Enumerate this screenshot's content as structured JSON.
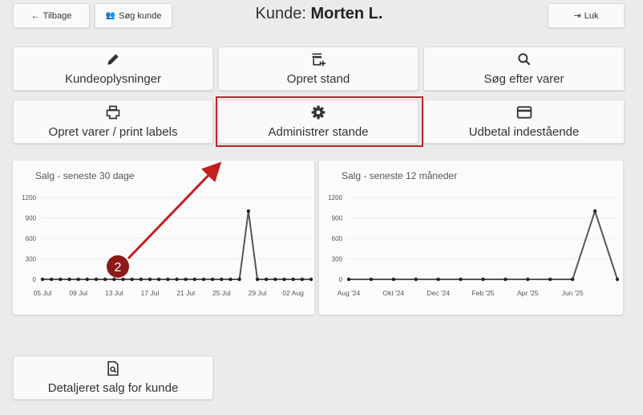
{
  "header": {
    "back_label": "Tilbage",
    "search_customer_label": "Søg kunde",
    "title_prefix": "Kunde:",
    "customer_name": "Morten L.",
    "close_label": "Luk"
  },
  "actions": [
    {
      "label": "Kundeoplysninger",
      "icon": "pencil-icon"
    },
    {
      "label": "Opret stand",
      "icon": "add-store-icon"
    },
    {
      "label": "Søg efter varer",
      "icon": "search-icon"
    },
    {
      "label": "Opret varer / print labels",
      "icon": "printer-icon"
    },
    {
      "label": "Administrer stande",
      "icon": "gear-icon"
    },
    {
      "label": "Udbetal indestående",
      "icon": "credit-card-icon"
    }
  ],
  "bottom_action": {
    "label": "Detaljeret salg for kunde",
    "icon": "document-search-icon"
  },
  "annotation": {
    "badge": "2",
    "color": "#b52a2a"
  },
  "chart_data": [
    {
      "type": "line",
      "title": "Salg - seneste 30 dage",
      "ylim": [
        0,
        1200
      ],
      "yticks": [
        "0",
        "300",
        "600",
        "900",
        "1200"
      ],
      "xticks": [
        "05 Jul",
        "09 Jul",
        "13 Jul",
        "17 Jul",
        "21 Jul",
        "25 Jul",
        "29 Jul",
        "02 Aug"
      ],
      "x": [
        "05 Jul",
        "06 Jul",
        "07 Jul",
        "08 Jul",
        "09 Jul",
        "10 Jul",
        "11 Jul",
        "12 Jul",
        "13 Jul",
        "14 Jul",
        "15 Jul",
        "16 Jul",
        "17 Jul",
        "18 Jul",
        "19 Jul",
        "20 Jul",
        "21 Jul",
        "22 Jul",
        "23 Jul",
        "24 Jul",
        "25 Jul",
        "26 Jul",
        "27 Jul",
        "28 Jul",
        "29 Jul",
        "30 Jul",
        "31 Jul",
        "01 Aug",
        "02 Aug",
        "03 Aug",
        "04 Aug"
      ],
      "values": [
        0,
        0,
        0,
        0,
        0,
        0,
        0,
        0,
        0,
        0,
        0,
        0,
        0,
        0,
        0,
        0,
        0,
        0,
        0,
        0,
        0,
        0,
        0,
        1000,
        0,
        0,
        0,
        0,
        0,
        0,
        0
      ],
      "grid": true,
      "line_color": "#555555"
    },
    {
      "type": "line",
      "title": "Salg - seneste 12 måneder",
      "ylim": [
        0,
        1200
      ],
      "yticks": [
        "0",
        "300",
        "600",
        "900",
        "1200"
      ],
      "xticks": [
        "Aug '24",
        "Okt '24",
        "Dec '24",
        "Feb '25",
        "Apr '25",
        "Jun '25"
      ],
      "x": [
        "Aug '24",
        "Sep '24",
        "Okt '24",
        "Nov '24",
        "Dec '24",
        "Jan '25",
        "Feb '25",
        "Mar '25",
        "Apr '25",
        "Maj '25",
        "Jun '25",
        "Jul '25",
        "Aug '25"
      ],
      "values": [
        0,
        0,
        0,
        0,
        0,
        0,
        0,
        0,
        0,
        0,
        0,
        1000,
        0
      ],
      "grid": true,
      "line_color": "#555555"
    }
  ]
}
